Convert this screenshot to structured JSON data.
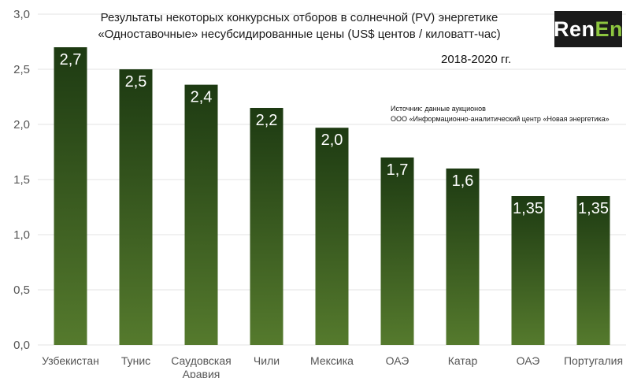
{
  "logo": {
    "part1": "Ren",
    "part2": "En",
    "accent_color": "#8dc63f"
  },
  "title": {
    "line1": "Результаты некоторых конкурсных отборов в солнечной (PV) энергетике",
    "line2": "«Одноставочные» несубсидированные цены (US$ центов / киловатт-час)"
  },
  "period": "2018-2020 гг.",
  "source": {
    "line1": "Источник: данные аукционов",
    "line2": "ООО «Информационно-аналитический центр «Новая энергетика»"
  },
  "colors": {
    "bar_top": "#1d3a12",
    "bar_bottom": "#557a2d",
    "bar_label": "#ffffff",
    "axis_text": "#555555",
    "gridline": "#e3e3e3"
  },
  "chart_data": {
    "type": "bar",
    "categories": [
      "Узбекистан",
      "Тунис",
      "Саудовская Аравия",
      "Чили",
      "Мексика",
      "ОАЭ",
      "Катар",
      "ОАЭ",
      "Португалия"
    ],
    "values": [
      2.7,
      2.5,
      2.36,
      2.15,
      1.97,
      1.7,
      1.6,
      1.35,
      1.35
    ],
    "data_labels": [
      "2,7",
      "2,5",
      "2,4",
      "2,2",
      "2,0",
      "1,7",
      "1,6",
      "1,35",
      "1,35"
    ],
    "yticks": [
      0,
      0.5,
      1,
      1.5,
      2,
      2.5,
      3
    ],
    "ytick_labels": [
      "0,0",
      "0,5",
      "1,0",
      "1,5",
      "2,0",
      "2,5",
      "3,0"
    ],
    "ylim": [
      0,
      3
    ],
    "grid": true,
    "legend": "none",
    "xlabel": "",
    "ylabel": ""
  }
}
